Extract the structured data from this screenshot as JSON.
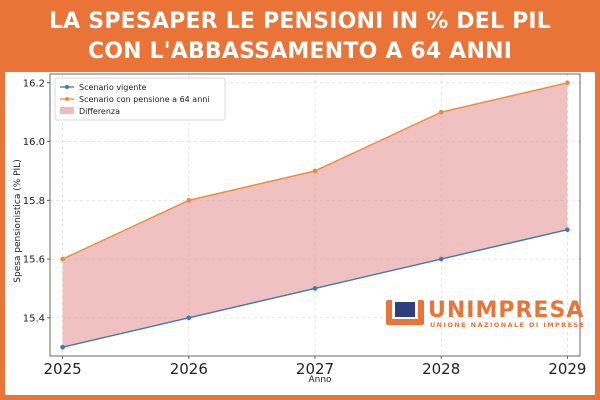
{
  "header": {
    "title_line1": "LA SPESAPER LE PENSIONI IN % DEL PIL",
    "title_line2": "CON L'ABBASSAMENTO A 64 ANNI"
  },
  "logo": {
    "name": "UNIMPRESA",
    "tagline": "UNIONE NAZIONALE DI IMPRESE"
  },
  "colors": {
    "brand_orange": "#ea7338",
    "series_vigente": "#3f78b8",
    "series_pensione64": "#ef8a3a",
    "difference_fill": "#e8a0a0"
  },
  "chart_data": {
    "type": "line",
    "title": "",
    "xlabel": "Anno",
    "ylabel": "Spesa pensionistica (% PIL)",
    "x": [
      2025,
      2026,
      2027,
      2028,
      2029
    ],
    "x_tick_labels": [
      "2025",
      "2026",
      "2027",
      "2028",
      "2029"
    ],
    "y_ticks": [
      15.4,
      15.6,
      15.8,
      16.0,
      16.2
    ],
    "y_tick_labels": [
      "15.4",
      "15.6",
      "15.8",
      "16.0",
      "16.2"
    ],
    "xlim": [
      2024.9,
      2029.1
    ],
    "ylim": [
      15.27,
      16.23
    ],
    "grid": true,
    "legend_position": "top-left",
    "series": [
      {
        "name": "Scenario vigente",
        "values": [
          15.3,
          15.4,
          15.5,
          15.6,
          15.7
        ],
        "color": "#3f78b8"
      },
      {
        "name": "Scenario con pensione a 64 anni",
        "values": [
          15.6,
          15.8,
          15.9,
          16.1,
          16.2
        ],
        "color": "#ef8a3a"
      }
    ],
    "fill_between": {
      "name": "Differenza",
      "color": "#e8a0a0"
    }
  }
}
